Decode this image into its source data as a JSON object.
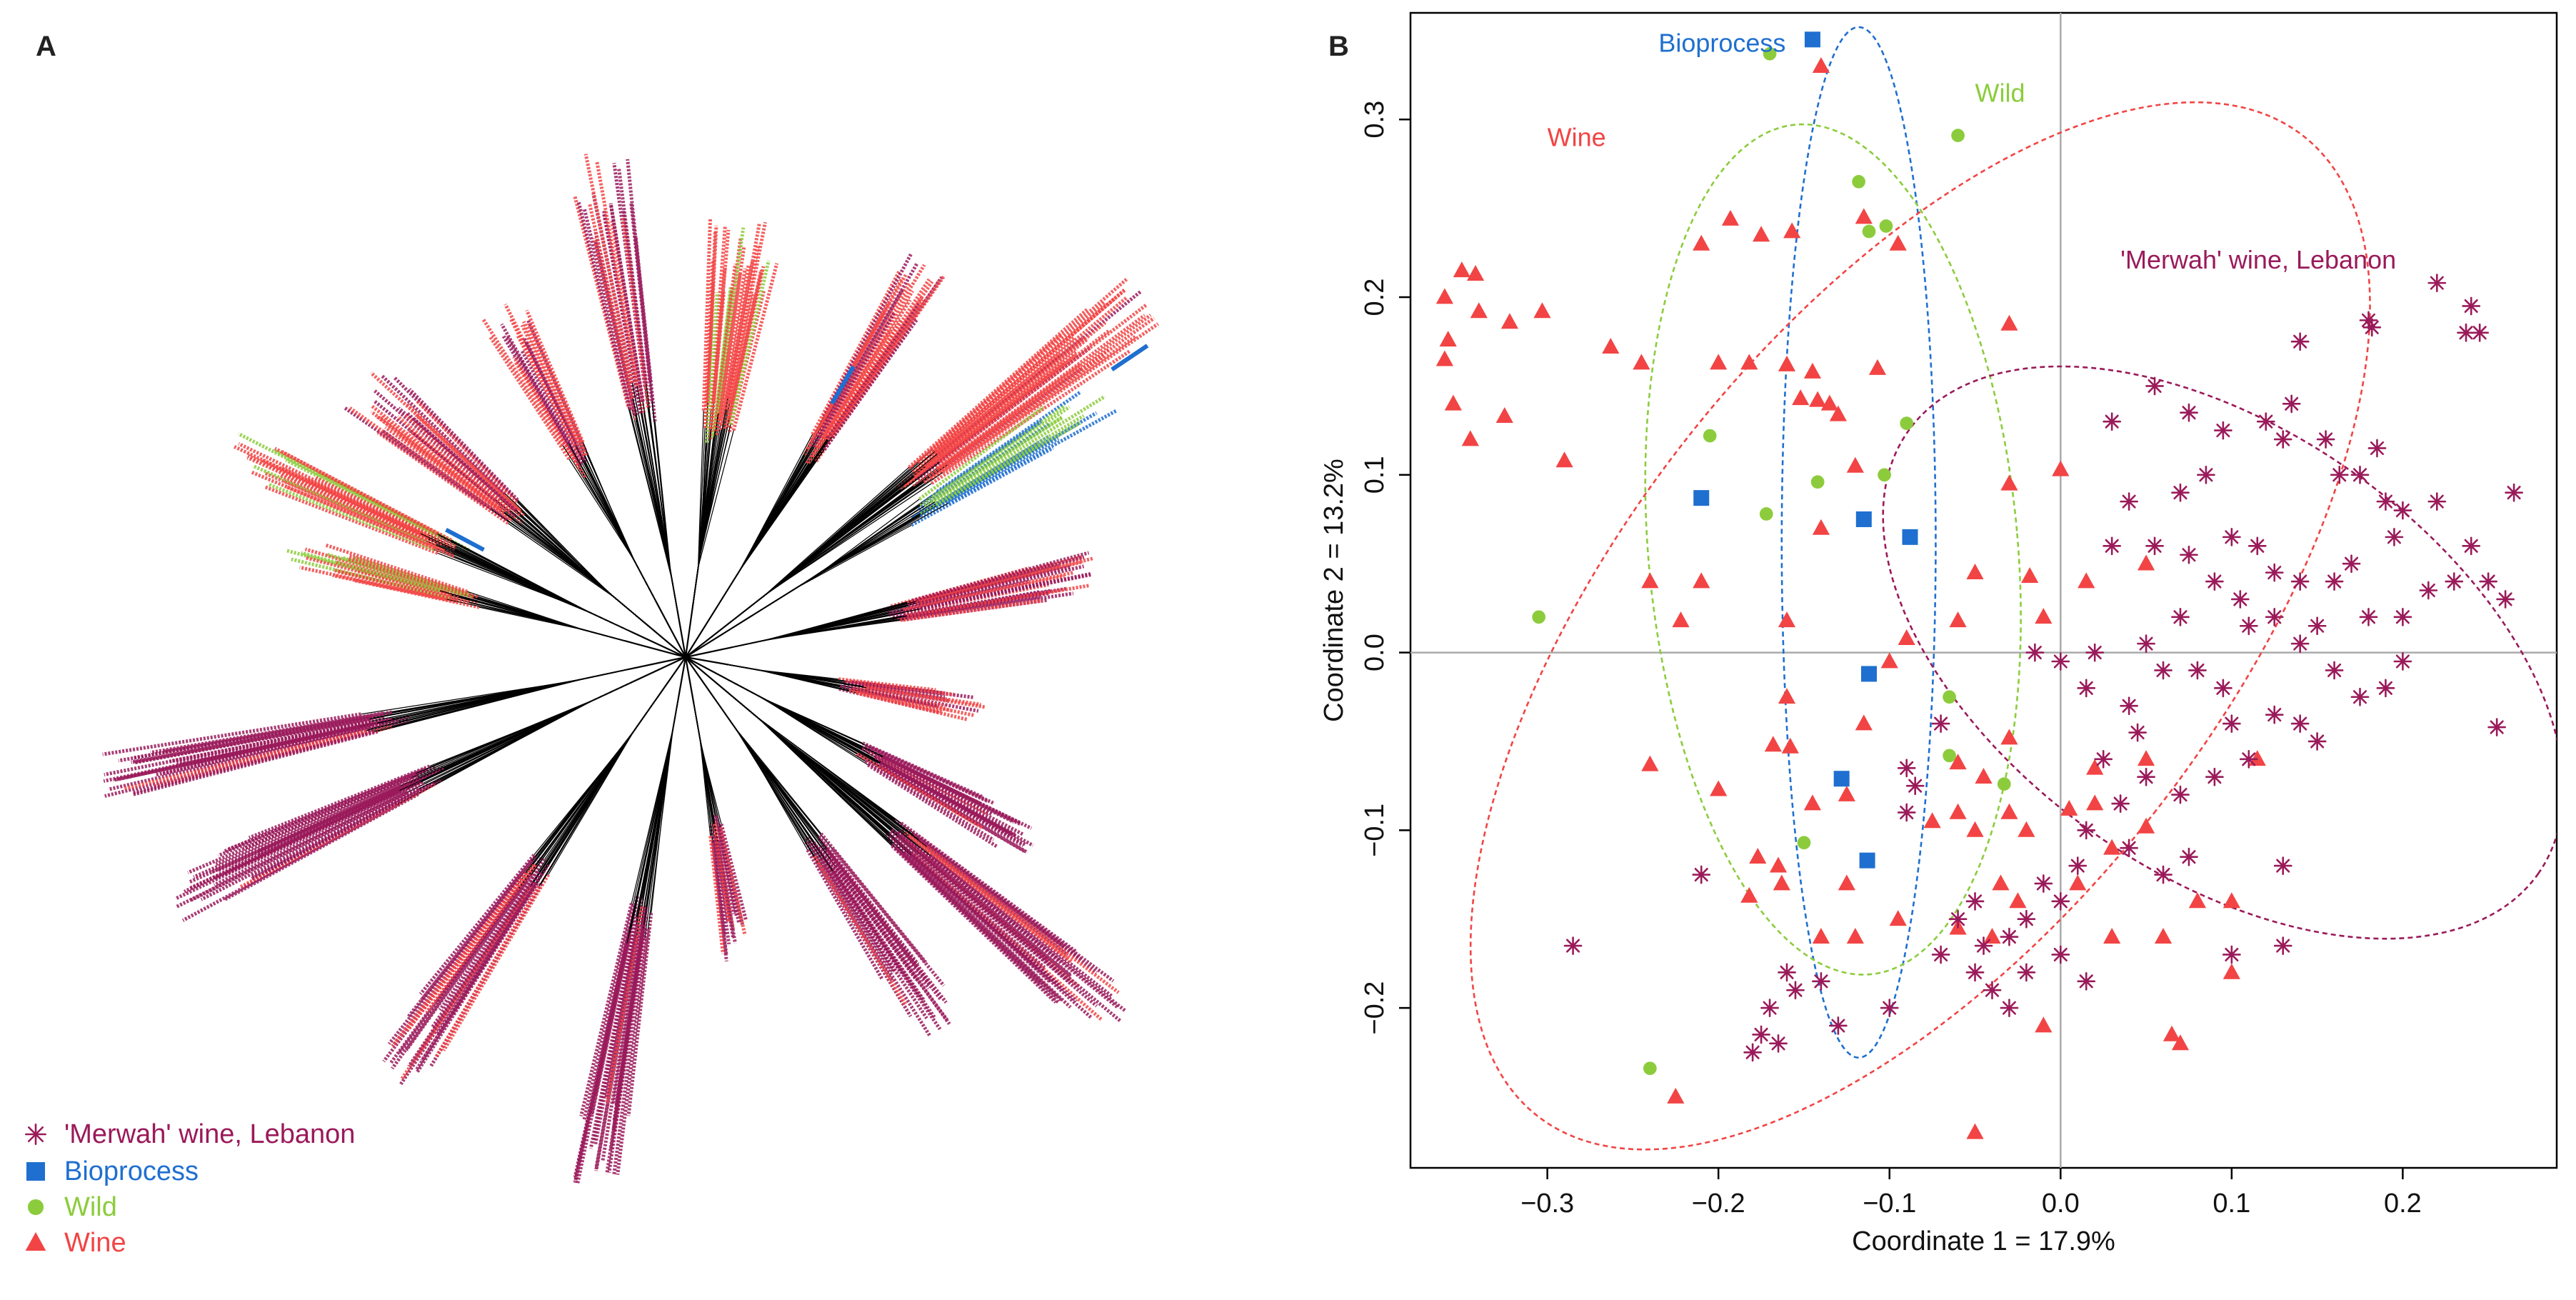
{
  "panels": {
    "a_label": "A",
    "b_label": "B"
  },
  "colors": {
    "merwah": "#9a1a5a",
    "bioprocess": "#1f6fd0",
    "wild": "#8ccc3c",
    "wine": "#f24444"
  },
  "legend": [
    {
      "label": "'Merwah' wine, Lebanon",
      "marker": "asterisk",
      "color": "#9a1a5a"
    },
    {
      "label": "Bioprocess",
      "marker": "square",
      "color": "#1f6fd0"
    },
    {
      "label": "Wild",
      "marker": "circle",
      "color": "#8ccc3c"
    },
    {
      "label": "Wine",
      "marker": "triangle",
      "color": "#f24444"
    }
  ],
  "chart_data": [
    {
      "panel": "A",
      "type": "other",
      "description_type": "unrooted phylogenetic tree",
      "groups": [
        "'Merwah' wine, Lebanon",
        "Bioprocess",
        "Wild",
        "Wine"
      ]
    },
    {
      "panel": "B",
      "type": "scatter",
      "xlabel": "Coordinate 1 = 17.9%",
      "ylabel": "Coordinate 2 = 13.2%",
      "xlim": [
        -0.38,
        0.29
      ],
      "ylim": [
        -0.29,
        0.36
      ],
      "xticks": [
        "−0.3",
        "−0.2",
        "−0.1",
        "0.0",
        "0.1",
        "0.2"
      ],
      "yticks": [
        "−0.2",
        "−0.1",
        "0.0",
        "0.1",
        "0.2",
        "0.3"
      ],
      "xtick_values": [
        -0.3,
        -0.2,
        -0.1,
        0.0,
        0.1,
        0.2
      ],
      "ytick_values": [
        -0.2,
        -0.1,
        0.0,
        0.1,
        0.2,
        0.3
      ],
      "reference_lines": {
        "x": 0.0,
        "y": 0.0
      },
      "ellipse_labels": {
        "bioprocess": "Bioprocess",
        "wild": "Wild",
        "wine": "Wine",
        "merwah": "'Merwah' wine, Lebanon"
      },
      "series": [
        {
          "name": "Bioprocess",
          "marker": "square",
          "points": [
            [
              -0.145,
              0.345
            ],
            [
              -0.21,
              0.087
            ],
            [
              -0.115,
              0.075
            ],
            [
              -0.088,
              0.065
            ],
            [
              -0.112,
              -0.012
            ],
            [
              -0.128,
              -0.071
            ],
            [
              -0.113,
              -0.117
            ]
          ]
        },
        {
          "name": "Wild",
          "marker": "circle",
          "points": [
            [
              -0.17,
              0.337
            ],
            [
              -0.06,
              0.291
            ],
            [
              -0.118,
              0.265
            ],
            [
              -0.112,
              0.237
            ],
            [
              -0.102,
              0.24
            ],
            [
              -0.205,
              0.122
            ],
            [
              -0.09,
              0.129
            ],
            [
              -0.142,
              0.096
            ],
            [
              -0.103,
              0.1
            ],
            [
              -0.172,
              0.078
            ],
            [
              -0.305,
              0.02
            ],
            [
              -0.065,
              -0.025
            ],
            [
              -0.065,
              -0.058
            ],
            [
              -0.033,
              -0.074
            ],
            [
              -0.15,
              -0.107
            ],
            [
              -0.24,
              -0.234
            ]
          ]
        },
        {
          "name": "Wine",
          "marker": "triangle",
          "points": [
            [
              -0.14,
              0.33
            ],
            [
              -0.193,
              0.244
            ],
            [
              -0.175,
              0.235
            ],
            [
              -0.157,
              0.237
            ],
            [
              -0.115,
              0.245
            ],
            [
              -0.095,
              0.23
            ],
            [
              -0.21,
              0.23
            ],
            [
              -0.35,
              0.215
            ],
            [
              -0.342,
              0.213
            ],
            [
              -0.36,
              0.2
            ],
            [
              -0.34,
              0.192
            ],
            [
              -0.322,
              0.186
            ],
            [
              -0.303,
              0.192
            ],
            [
              -0.263,
              0.172
            ],
            [
              -0.358,
              0.176
            ],
            [
              -0.36,
              0.165
            ],
            [
              -0.245,
              0.163
            ],
            [
              -0.2,
              0.163
            ],
            [
              -0.182,
              0.163
            ],
            [
              -0.16,
              0.162
            ],
            [
              -0.145,
              0.158
            ],
            [
              -0.152,
              0.143
            ],
            [
              -0.142,
              0.142
            ],
            [
              -0.135,
              0.14
            ],
            [
              -0.107,
              0.16
            ],
            [
              -0.13,
              0.134
            ],
            [
              -0.03,
              0.185
            ],
            [
              -0.355,
              0.14
            ],
            [
              -0.325,
              0.133
            ],
            [
              -0.345,
              0.12
            ],
            [
              -0.29,
              0.108
            ],
            [
              -0.12,
              0.105
            ],
            [
              -0.03,
              0.095
            ],
            [
              0.0,
              0.103
            ],
            [
              -0.24,
              0.04
            ],
            [
              -0.21,
              0.04
            ],
            [
              -0.14,
              0.07
            ],
            [
              -0.05,
              0.045
            ],
            [
              -0.018,
              0.043
            ],
            [
              0.015,
              0.04
            ],
            [
              0.05,
              0.05
            ],
            [
              -0.222,
              0.018
            ],
            [
              -0.16,
              0.018
            ],
            [
              -0.09,
              0.008
            ],
            [
              -0.1,
              -0.005
            ],
            [
              -0.06,
              0.018
            ],
            [
              -0.01,
              0.02
            ],
            [
              -0.16,
              -0.025
            ],
            [
              -0.115,
              -0.04
            ],
            [
              -0.168,
              -0.052
            ],
            [
              -0.158,
              -0.053
            ],
            [
              -0.06,
              -0.062
            ],
            [
              -0.03,
              -0.048
            ],
            [
              -0.045,
              -0.07
            ],
            [
              -0.24,
              -0.063
            ],
            [
              -0.2,
              -0.077
            ],
            [
              -0.06,
              -0.09
            ],
            [
              -0.03,
              -0.09
            ],
            [
              -0.05,
              -0.1
            ],
            [
              -0.177,
              -0.115
            ],
            [
              -0.165,
              -0.12
            ],
            [
              -0.075,
              -0.095
            ],
            [
              -0.02,
              -0.1
            ],
            [
              0.005,
              -0.088
            ],
            [
              0.02,
              -0.085
            ],
            [
              -0.125,
              -0.08
            ],
            [
              -0.145,
              -0.085
            ],
            [
              -0.125,
              -0.13
            ],
            [
              -0.182,
              -0.137
            ],
            [
              -0.163,
              -0.13
            ],
            [
              -0.14,
              -0.16
            ],
            [
              -0.12,
              -0.16
            ],
            [
              -0.095,
              -0.15
            ],
            [
              -0.06,
              -0.155
            ],
            [
              -0.04,
              -0.16
            ],
            [
              -0.035,
              -0.13
            ],
            [
              -0.025,
              -0.14
            ],
            [
              0.01,
              -0.13
            ],
            [
              0.03,
              -0.11
            ],
            [
              0.05,
              -0.098
            ],
            [
              0.08,
              -0.14
            ],
            [
              0.1,
              -0.14
            ],
            [
              0.03,
              -0.16
            ],
            [
              0.06,
              -0.16
            ],
            [
              0.115,
              -0.06
            ],
            [
              0.02,
              -0.065
            ],
            [
              0.05,
              -0.06
            ],
            [
              -0.01,
              -0.21
            ],
            [
              0.065,
              -0.215
            ],
            [
              0.07,
              -0.22
            ],
            [
              -0.225,
              -0.25
            ],
            [
              -0.05,
              -0.27
            ],
            [
              0.1,
              -0.18
            ]
          ]
        },
        {
          "name": "'Merwah' wine, Lebanon",
          "marker": "asterisk",
          "points": [
            [
              0.22,
              0.208
            ],
            [
              0.237,
              0.18
            ],
            [
              0.18,
              0.187
            ],
            [
              0.182,
              0.183
            ],
            [
              0.24,
              0.195
            ],
            [
              0.245,
              0.18
            ],
            [
              0.14,
              0.175
            ],
            [
              0.055,
              0.15
            ],
            [
              0.03,
              0.13
            ],
            [
              0.075,
              0.135
            ],
            [
              0.085,
              0.1
            ],
            [
              0.095,
              0.125
            ],
            [
              0.12,
              0.13
            ],
            [
              0.13,
              0.12
            ],
            [
              0.135,
              0.14
            ],
            [
              0.155,
              0.12
            ],
            [
              0.163,
              0.1
            ],
            [
              0.175,
              0.1
            ],
            [
              0.185,
              0.115
            ],
            [
              0.19,
              0.085
            ],
            [
              0.195,
              0.065
            ],
            [
              0.2,
              0.08
            ],
            [
              0.22,
              0.085
            ],
            [
              0.24,
              0.06
            ],
            [
              0.23,
              0.04
            ],
            [
              0.25,
              0.04
            ],
            [
              0.26,
              0.03
            ],
            [
              0.265,
              0.09
            ],
            [
              0.07,
              0.09
            ],
            [
              0.04,
              0.085
            ],
            [
              0.03,
              0.06
            ],
            [
              0.055,
              0.06
            ],
            [
              0.075,
              0.055
            ],
            [
              0.09,
              0.04
            ],
            [
              0.1,
              0.065
            ],
            [
              0.115,
              0.06
            ],
            [
              0.125,
              0.045
            ],
            [
              0.14,
              0.04
            ],
            [
              0.16,
              0.04
            ],
            [
              0.17,
              0.05
            ],
            [
              0.18,
              0.02
            ],
            [
              0.2,
              0.02
            ],
            [
              0.215,
              0.035
            ],
            [
              0.105,
              0.03
            ],
            [
              0.11,
              0.015
            ],
            [
              0.125,
              0.02
            ],
            [
              0.14,
              0.005
            ],
            [
              0.15,
              0.015
            ],
            [
              0.16,
              -0.01
            ],
            [
              0.175,
              -0.025
            ],
            [
              0.19,
              -0.02
            ],
            [
              0.2,
              -0.005
            ],
            [
              0.07,
              0.02
            ],
            [
              0.05,
              0.005
            ],
            [
              0.02,
              0.0
            ],
            [
              0.0,
              -0.005
            ],
            [
              -0.015,
              0.0
            ],
            [
              0.015,
              -0.02
            ],
            [
              0.04,
              -0.03
            ],
            [
              0.06,
              -0.01
            ],
            [
              0.08,
              -0.01
            ],
            [
              0.095,
              -0.02
            ],
            [
              0.1,
              -0.04
            ],
            [
              0.11,
              -0.06
            ],
            [
              0.125,
              -0.035
            ],
            [
              0.14,
              -0.04
            ],
            [
              0.15,
              -0.05
            ],
            [
              0.255,
              -0.042
            ],
            [
              0.045,
              -0.045
            ],
            [
              0.025,
              -0.06
            ],
            [
              0.05,
              -0.07
            ],
            [
              0.07,
              -0.08
            ],
            [
              0.09,
              -0.07
            ],
            [
              0.035,
              -0.085
            ],
            [
              0.015,
              -0.1
            ],
            [
              0.04,
              -0.11
            ],
            [
              0.06,
              -0.125
            ],
            [
              0.075,
              -0.115
            ],
            [
              0.01,
              -0.12
            ],
            [
              -0.01,
              -0.13
            ],
            [
              -0.02,
              -0.15
            ],
            [
              -0.03,
              -0.16
            ],
            [
              -0.045,
              -0.165
            ],
            [
              0.0,
              -0.17
            ],
            [
              -0.05,
              -0.14
            ],
            [
              -0.06,
              -0.15
            ],
            [
              -0.07,
              -0.17
            ],
            [
              -0.05,
              -0.18
            ],
            [
              -0.04,
              -0.19
            ],
            [
              -0.03,
              -0.2
            ],
            [
              -0.02,
              -0.18
            ],
            [
              0.0,
              -0.14
            ],
            [
              -0.09,
              -0.09
            ],
            [
              -0.085,
              -0.075
            ],
            [
              -0.07,
              -0.04
            ],
            [
              -0.16,
              -0.18
            ],
            [
              -0.155,
              -0.19
            ],
            [
              -0.14,
              -0.185
            ],
            [
              -0.13,
              -0.21
            ],
            [
              -0.1,
              -0.2
            ],
            [
              -0.17,
              -0.2
            ],
            [
              -0.175,
              -0.215
            ],
            [
              -0.18,
              -0.225
            ],
            [
              -0.165,
              -0.22
            ],
            [
              -0.285,
              -0.165
            ],
            [
              -0.21,
              -0.125
            ],
            [
              -0.09,
              -0.065
            ],
            [
              0.13,
              -0.12
            ],
            [
              0.1,
              -0.17
            ],
            [
              0.13,
              -0.165
            ],
            [
              0.015,
              -0.185
            ]
          ]
        }
      ],
      "ellipses": [
        {
          "name": "Bioprocess",
          "center": [
            -0.118,
            0.062
          ],
          "semi_axes": [
            0.045,
            0.29
          ],
          "rotation_deg": 0
        },
        {
          "name": "Wild",
          "center": [
            -0.133,
            0.058
          ],
          "semi_axes": [
            0.108,
            0.24
          ],
          "rotation_deg": -5
        },
        {
          "name": "Wine",
          "center": [
            -0.082,
            0.015
          ],
          "semi_axes": [
            0.175,
            0.35
          ],
          "rotation_deg": 38
        },
        {
          "name": "'Merwah' wine, Lebanon",
          "center": [
            0.095,
            -0.0
          ],
          "semi_axes": [
            0.225,
            0.125
          ],
          "rotation_deg": 35
        }
      ]
    }
  ]
}
